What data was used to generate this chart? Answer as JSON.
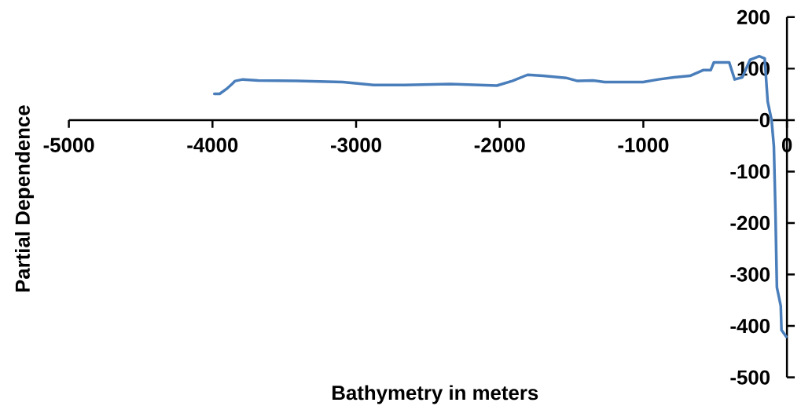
{
  "chart_data": {
    "type": "line",
    "xlabel": "Bathymetry in meters",
    "ylabel": "Partial Dependence",
    "x": [
      -3987,
      -3950,
      -3896,
      -3864,
      -3842,
      -3789,
      -3682,
      -3414,
      -3092,
      -2878,
      -2663,
      -2342,
      -2020,
      -1913,
      -1806,
      -1699,
      -1538,
      -1458,
      -1350,
      -1270,
      -1002,
      -895,
      -788,
      -675,
      -584,
      -531,
      -509,
      -402,
      -364,
      -311,
      -257,
      -193,
      -155,
      -134,
      -107,
      -91,
      -80,
      -70,
      -43,
      -38,
      -5
    ],
    "values": [
      51,
      51,
      62,
      70,
      76,
      79,
      77,
      76,
      74,
      68,
      68,
      70,
      67,
      76,
      88,
      86,
      82,
      76,
      77,
      74,
      74,
      79,
      83,
      86,
      97,
      97,
      112,
      112,
      79,
      83,
      117,
      124,
      120,
      36,
      0,
      -51,
      -180,
      -325,
      -361,
      -408,
      -421
    ],
    "color": "#4a7ebb",
    "xlim": [
      -5000,
      0
    ],
    "ylim": [
      -500,
      200
    ],
    "xticks": [
      -5000,
      -4000,
      -3000,
      -2000,
      -1000,
      0
    ],
    "yticks": [
      -500,
      -400,
      -300,
      -200,
      -100,
      0,
      100,
      200
    ]
  }
}
